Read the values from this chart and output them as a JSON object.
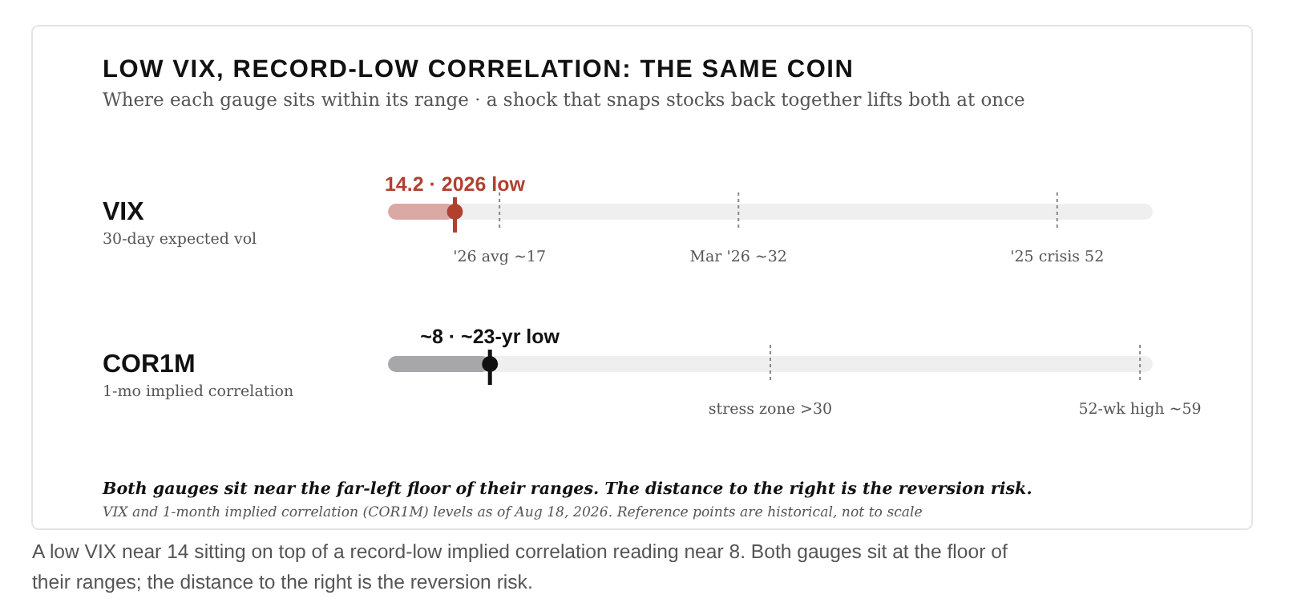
{
  "chart_data": [
    {
      "type": "other",
      "title": "LOW VIX, RECORD-LOW CORRELATION: THE SAME COIN",
      "subtitle": "Where each gauge sits within its range · a shock that snaps stocks back together lifts both at once",
      "annotations": [
        "Both gauges sit near the far-left floor of their ranges. The distance to the right is the reversion risk.",
        "VIX and 1-month implied correlation (COR1M) levels as of Aug 18, 2026. Reference points are historical, not to scale",
        "A low VIX near 14 sitting on top of a record-low implied correlation reading near 8. Both gauges sit at the floor of their ranges; the distance to the right is the reversion risk."
      ]
    },
    {
      "type": "bar",
      "orientation": "horizontal",
      "categories": [
        "VIX"
      ],
      "annotations": [
        "30-day expected vol"
      ],
      "xlim": [
        10,
        58
      ],
      "series": [
        {
          "type": "bar",
          "color": "#dba9a4",
          "values": [
            14.2
          ]
        },
        {
          "type": "scatter",
          "color": "#b0412f",
          "marker": "circle",
          "values": [
            14.2
          ],
          "value_labels": [
            "14.2 · 2026 low"
          ]
        }
      ],
      "ref_lines": [
        {
          "axis": "x",
          "value": 17,
          "label": "'26 avg ~17",
          "line_style": "dotted"
        },
        {
          "axis": "x",
          "value": 32,
          "label": "Mar '26 ~32",
          "line_style": "dotted"
        },
        {
          "axis": "x",
          "value": 52,
          "label": "'25 crisis 52",
          "line_style": "dotted"
        }
      ]
    },
    {
      "type": "bar",
      "orientation": "horizontal",
      "categories": [
        "COR1M"
      ],
      "annotations": [
        "1-mo implied correlation"
      ],
      "xlim": [
        0,
        60
      ],
      "series": [
        {
          "type": "bar",
          "color": "#a7a7a9",
          "values": [
            8
          ]
        },
        {
          "type": "scatter",
          "color": "#111111",
          "marker": "circle",
          "values": [
            8
          ],
          "value_labels": [
            "~8 · ~23-yr low"
          ]
        }
      ],
      "ref_lines": [
        {
          "axis": "x",
          "value": 30,
          "label": "stress zone >30",
          "line_style": "dotted"
        },
        {
          "axis": "x",
          "value": 59,
          "label": "52-wk high ~59",
          "line_style": "dotted"
        }
      ]
    }
  ]
}
